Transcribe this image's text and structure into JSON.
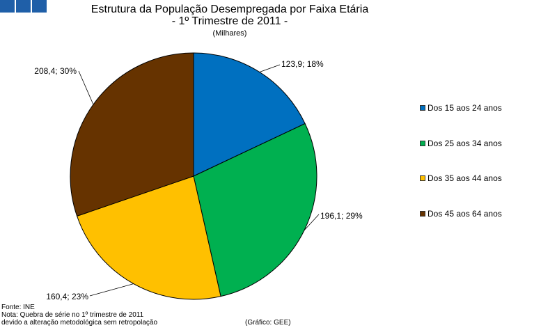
{
  "logo": {
    "icon": "logo-squares-icon",
    "color": "#1f5fa8"
  },
  "title_line1": "Estrutura da População Desempregada por Faixa Etária",
  "title_line2": "- 1º Trimestre de 2011 -",
  "subtitle": "(Milhares)",
  "chart_data": {
    "type": "pie",
    "title": "Estrutura da População Desempregada por Faixa Etária - 1º Trimestre de 2011 -",
    "unit": "(Milhares)",
    "legend_position": "right",
    "slices": [
      {
        "name": "Dos 15 aos 24 anos",
        "value": 123.9,
        "percent": 18,
        "label": "123,9; 18%",
        "color": "#0070c0"
      },
      {
        "name": "Dos 25 aos 34 anos",
        "value": 196.1,
        "percent": 29,
        "label": "196,1; 29%",
        "color": "#00b050"
      },
      {
        "name": "Dos 35 aos 44 anos",
        "value": 160.4,
        "percent": 23,
        "label": "160,4; 23%",
        "color": "#ffc000"
      },
      {
        "name": "Dos 45 aos 64 anos",
        "value": 208.4,
        "percent": 30,
        "label": "208,4; 30%",
        "color": "#663300"
      }
    ]
  },
  "footer": {
    "source": "Fonte: INE",
    "note1": "Nota: Quebra de série no 1º trimestre de 2011",
    "note2": "devido a alteração metodológica sem retropolação",
    "credit": "(Gráfico: GEE)"
  }
}
